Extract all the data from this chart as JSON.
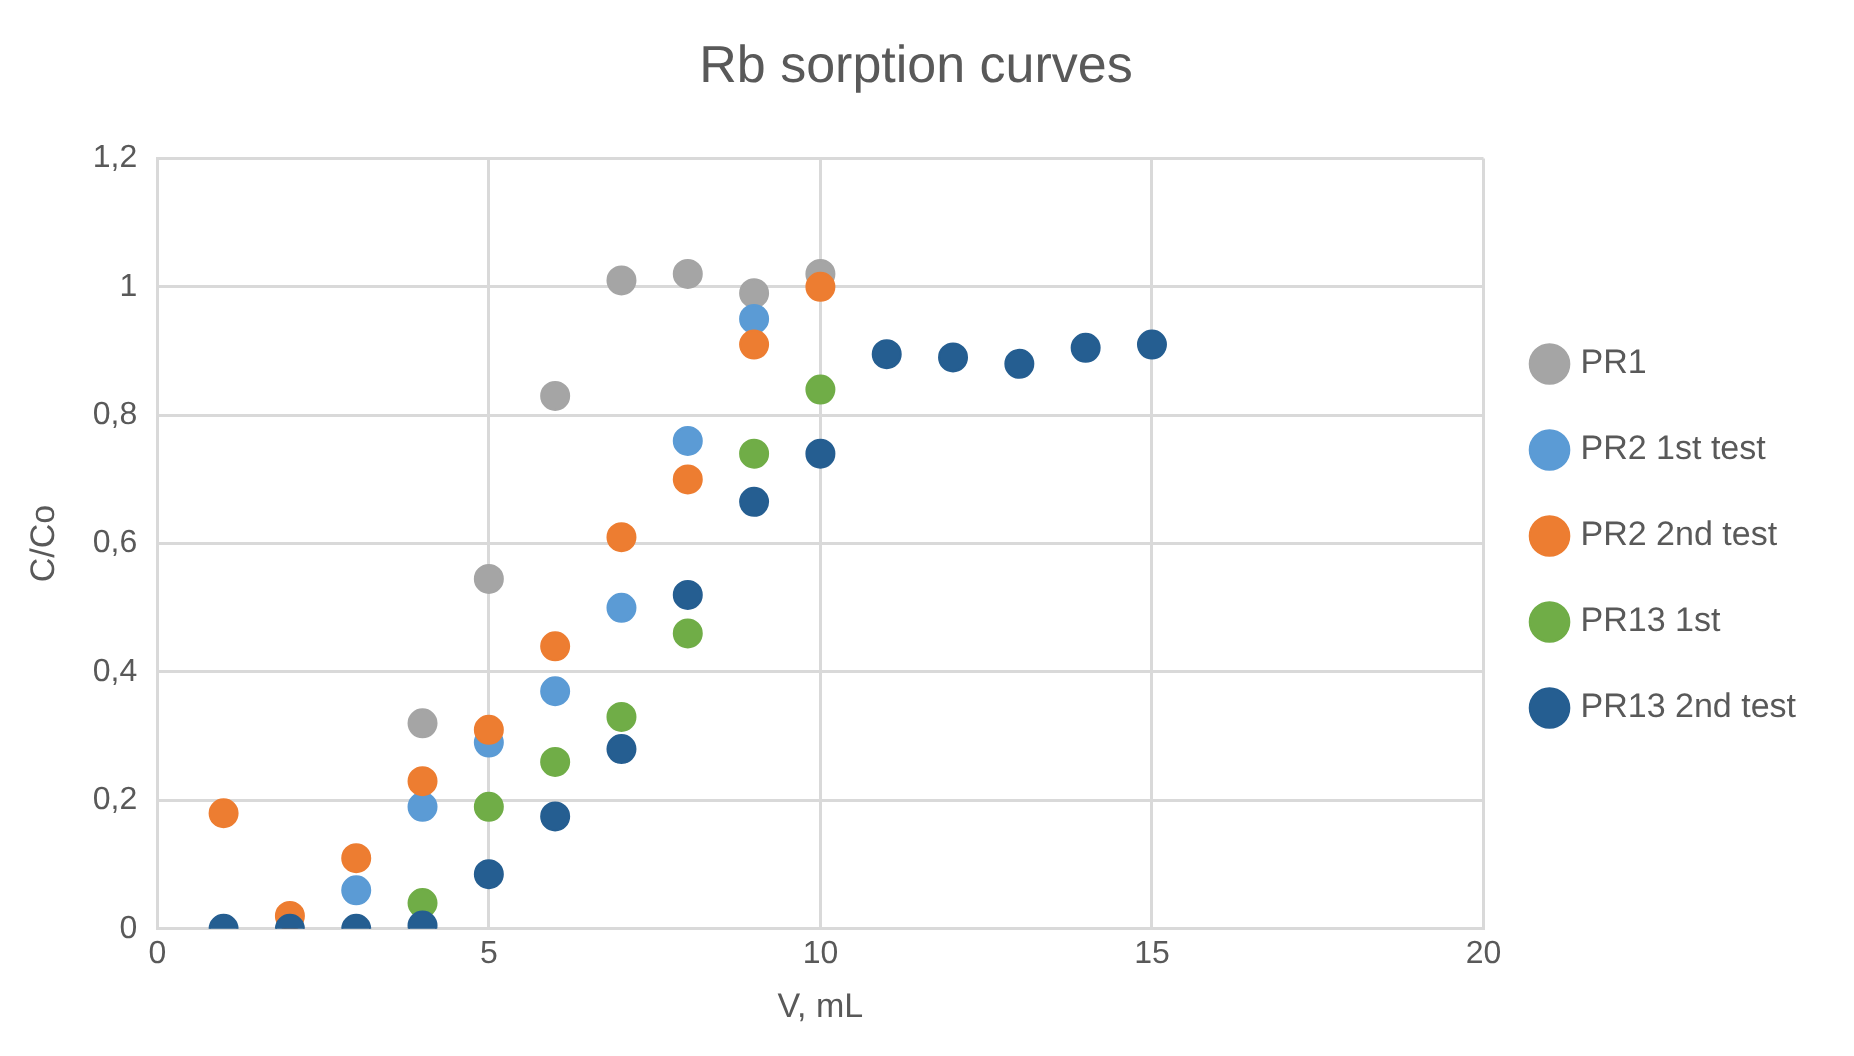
{
  "chart_data": {
    "type": "scatter",
    "title": "Rb sorption curves",
    "xlabel": "V, mL",
    "ylabel": "C/Co",
    "xlim": [
      0,
      20
    ],
    "xticks": [
      0,
      5,
      10,
      15,
      20
    ],
    "ylim": [
      0,
      1.2
    ],
    "yticks": [
      {
        "value": 0,
        "label": "0"
      },
      {
        "value": 0.2,
        "label": "0,2"
      },
      {
        "value": 0.4,
        "label": "0,4"
      },
      {
        "value": 0.6,
        "label": "0,6"
      },
      {
        "value": 0.8,
        "label": "0,8"
      },
      {
        "value": 1,
        "label": "1"
      },
      {
        "value": 1.2,
        "label": "1,2"
      }
    ],
    "grid": true,
    "legend": "right",
    "marker": "circle",
    "series": [
      {
        "name": "PR1",
        "color": "#a5a5a5",
        "x": [
          4,
          5,
          6,
          7,
          8,
          9,
          10
        ],
        "values": [
          0.32,
          0.545,
          0.83,
          1.01,
          1.02,
          0.99,
          1.02
        ]
      },
      {
        "name": "PR2 1st test",
        "color": "#5b9bd5",
        "x": [
          3,
          4,
          5,
          6,
          7,
          8,
          9
        ],
        "values": [
          0.06,
          0.19,
          0.29,
          0.37,
          0.5,
          0.76,
          0.95
        ]
      },
      {
        "name": "PR2 2nd test",
        "color": "#ed7d31",
        "x": [
          1,
          2,
          3,
          4,
          5,
          6,
          7,
          8,
          9,
          10
        ],
        "values": [
          0.18,
          0.02,
          0.11,
          0.23,
          0.31,
          0.44,
          0.61,
          0.7,
          0.91,
          1.0
        ]
      },
      {
        "name": "PR13 1st",
        "color": "#70ad47",
        "x": [
          4,
          5,
          6,
          7,
          8,
          9,
          10
        ],
        "values": [
          0.04,
          0.19,
          0.26,
          0.33,
          0.46,
          0.74,
          0.84
        ]
      },
      {
        "name": "PR13 2nd test",
        "color": "#255e91",
        "x": [
          1,
          2,
          3,
          4,
          5,
          6,
          7,
          8,
          9,
          10,
          11,
          12,
          13,
          14,
          15
        ],
        "values": [
          0,
          0,
          0,
          0.005,
          0.085,
          0.175,
          0.28,
          0.52,
          0.665,
          0.74,
          0.895,
          0.89,
          0.88,
          0.905,
          0.91
        ]
      }
    ]
  }
}
